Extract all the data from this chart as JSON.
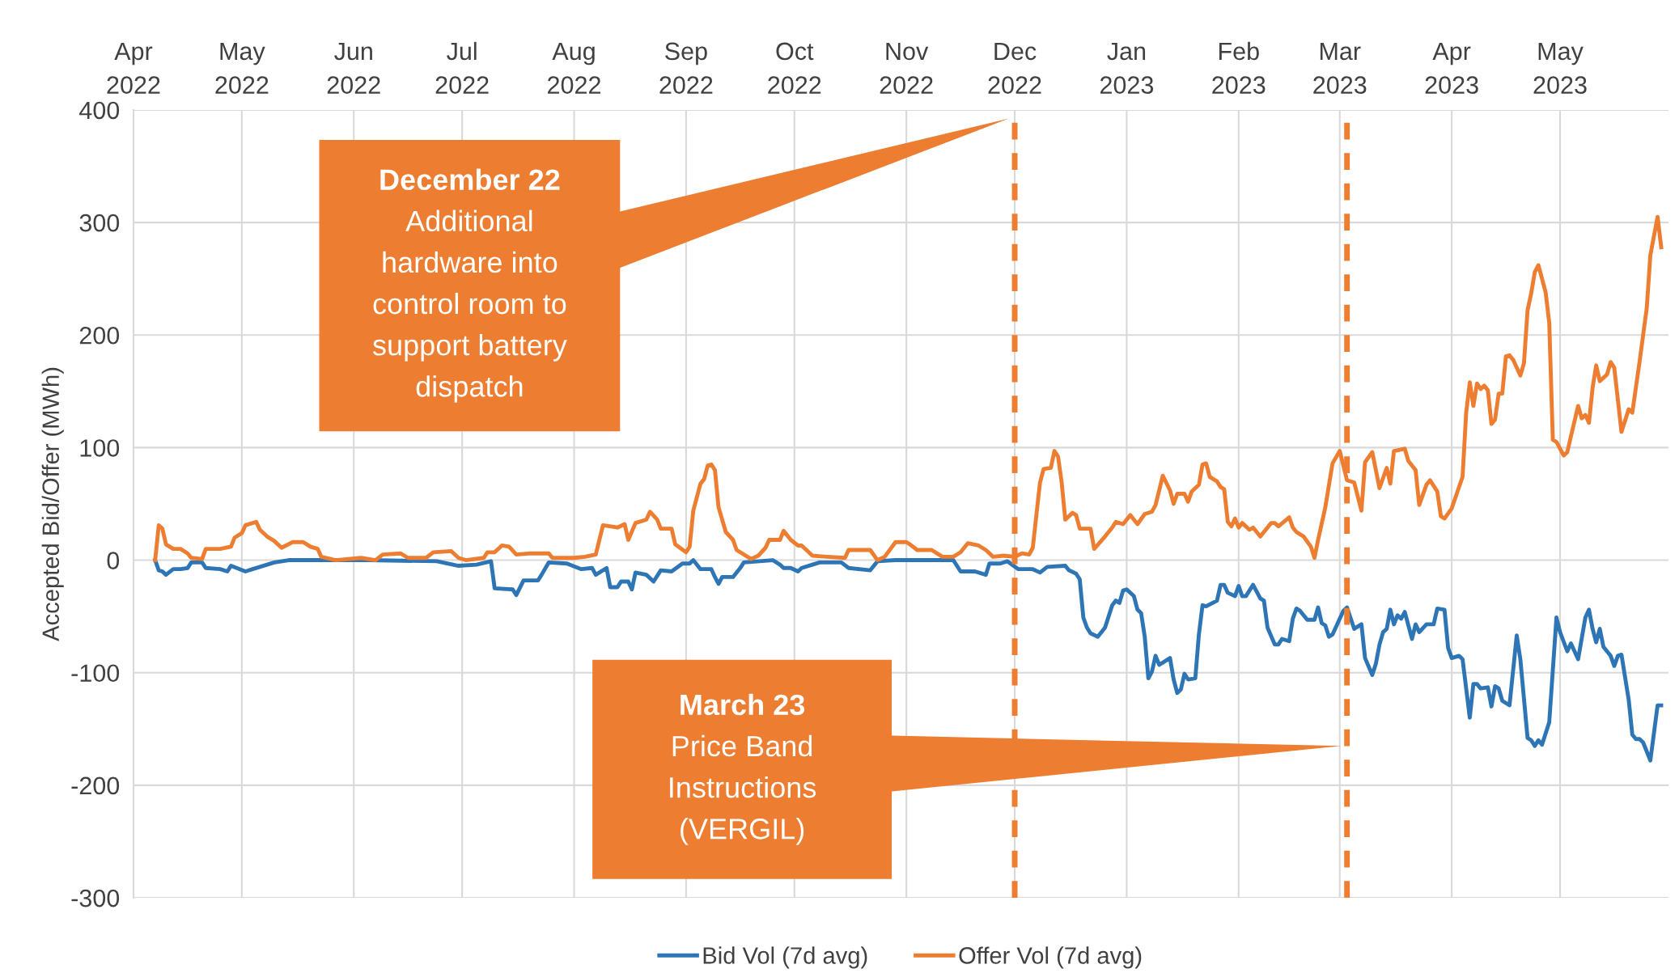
{
  "chart_data": {
    "type": "line",
    "ylabel": "Accepted Bid/Offer (MWh)",
    "xlim": [
      "2022-04-01",
      "2023-05-31"
    ],
    "xticks": [
      {
        "value": "2022-04-01",
        "label": "Apr\n2022"
      },
      {
        "value": "2022-05-01",
        "label": "May\n2022"
      },
      {
        "value": "2022-06-01",
        "label": "Jun\n2022"
      },
      {
        "value": "2022-07-01",
        "label": "Jul\n2022"
      },
      {
        "value": "2022-08-01",
        "label": "Aug\n2022"
      },
      {
        "value": "2022-09-01",
        "label": "Sep\n2022"
      },
      {
        "value": "2022-10-01",
        "label": "Oct\n2022"
      },
      {
        "value": "2022-11-01",
        "label": "Nov\n2022"
      },
      {
        "value": "2022-12-01",
        "label": "Dec\n2022"
      },
      {
        "value": "2023-01-01",
        "label": "Jan\n2023"
      },
      {
        "value": "2023-02-01",
        "label": "Feb\n2023"
      },
      {
        "value": "2023-03-01",
        "label": "Mar\n2023"
      },
      {
        "value": "2023-04-01",
        "label": "Apr\n2023"
      },
      {
        "value": "2023-05-01",
        "label": "May\n2023"
      }
    ],
    "ylim": [
      -300,
      400
    ],
    "yticks": [
      -300,
      -200,
      -100,
      0,
      100,
      200,
      300,
      400
    ],
    "grid": true,
    "legend": "bottom",
    "line_style": "solid",
    "marker": "none",
    "series": [
      {
        "name": "Bid Vol (7d avg)",
        "color": "#2e75b6",
        "x": [
          "2022-04-07",
          "2022-04-08",
          "2022-04-09",
          "2022-04-10",
          "2022-04-12",
          "2022-04-14",
          "2022-04-16",
          "2022-04-17",
          "2022-04-20",
          "2022-04-21",
          "2022-04-25",
          "2022-04-27",
          "2022-04-28",
          "2022-05-02",
          "2022-05-04",
          "2022-05-08",
          "2022-05-10",
          "2022-05-14",
          "2022-06-05",
          "2022-06-24",
          "2022-06-30",
          "2022-07-05",
          "2022-07-09",
          "2022-07-10",
          "2022-07-15",
          "2022-07-16",
          "2022-07-18",
          "2022-07-22",
          "2022-07-23",
          "2022-07-25",
          "2022-07-30",
          "2022-08-03",
          "2022-08-06",
          "2022-08-07",
          "2022-08-10",
          "2022-08-11",
          "2022-08-13",
          "2022-08-14",
          "2022-08-16",
          "2022-08-17",
          "2022-08-18",
          "2022-08-21",
          "2022-08-23",
          "2022-08-25",
          "2022-08-28",
          "2022-08-31",
          "2022-09-02",
          "2022-09-03",
          "2022-09-05",
          "2022-09-08",
          "2022-09-09",
          "2022-09-10",
          "2022-09-11",
          "2022-09-14",
          "2022-09-16",
          "2022-09-17",
          "2022-09-25",
          "2022-09-27",
          "2022-09-28",
          "2022-09-30",
          "2022-10-02",
          "2022-10-03",
          "2022-10-06",
          "2022-10-08",
          "2022-10-14",
          "2022-10-16",
          "2022-10-22",
          "2022-10-24",
          "2022-10-29",
          "2022-11-14",
          "2022-11-16",
          "2022-11-20",
          "2022-11-23",
          "2022-11-24",
          "2022-11-27",
          "2022-11-29",
          "2022-12-02",
          "2022-12-06",
          "2022-12-08",
          "2022-12-10",
          "2022-12-15",
          "2022-12-16",
          "2022-12-18",
          "2022-12-19",
          "2022-12-20",
          "2022-12-21",
          "2022-12-22",
          "2022-12-24",
          "2022-12-26",
          "2022-12-28",
          "2022-12-29",
          "2022-12-30",
          "2022-12-31",
          "2023-01-01",
          "2023-01-03",
          "2023-01-04",
          "2023-01-05",
          "2023-01-06",
          "2023-01-07",
          "2023-01-08",
          "2023-01-09",
          "2023-01-10",
          "2023-01-13",
          "2023-01-14",
          "2023-01-15",
          "2023-01-16",
          "2023-01-17",
          "2023-01-18",
          "2023-01-20",
          "2023-01-21",
          "2023-01-22",
          "2023-01-23",
          "2023-01-26",
          "2023-01-27",
          "2023-01-28",
          "2023-01-29",
          "2023-01-31",
          "2023-02-01",
          "2023-02-02",
          "2023-02-03",
          "2023-02-05",
          "2023-02-07",
          "2023-02-08",
          "2023-02-09",
          "2023-02-11",
          "2023-02-12",
          "2023-02-13",
          "2023-02-15",
          "2023-02-16",
          "2023-02-17",
          "2023-02-18",
          "2023-02-20",
          "2023-02-22",
          "2023-02-23",
          "2023-02-24",
          "2023-02-25",
          "2023-02-26",
          "2023-02-27",
          "2023-03-02",
          "2023-03-03",
          "2023-03-05",
          "2023-03-07",
          "2023-03-08",
          "2023-03-10",
          "2023-03-11",
          "2023-03-12",
          "2023-03-13",
          "2023-03-14",
          "2023-03-15",
          "2023-03-16",
          "2023-03-17",
          "2023-03-18",
          "2023-03-19",
          "2023-03-21",
          "2023-03-22",
          "2023-03-23",
          "2023-03-25",
          "2023-03-27",
          "2023-03-28",
          "2023-03-30",
          "2023-03-31",
          "2023-04-01",
          "2023-04-03",
          "2023-04-04",
          "2023-04-06",
          "2023-04-07",
          "2023-04-08",
          "2023-04-09",
          "2023-04-11",
          "2023-04-12",
          "2023-04-13",
          "2023-04-14",
          "2023-04-15",
          "2023-04-17",
          "2023-04-19",
          "2023-04-20",
          "2023-04-22",
          "2023-04-23",
          "2023-04-24",
          "2023-04-25",
          "2023-04-26",
          "2023-04-28",
          "2023-04-30",
          "2023-05-01",
          "2023-05-03",
          "2023-05-04",
          "2023-05-06",
          "2023-05-08",
          "2023-05-09",
          "2023-05-10",
          "2023-05-11",
          "2023-05-12",
          "2023-05-13",
          "2023-05-15",
          "2023-05-16",
          "2023-05-17",
          "2023-05-18",
          "2023-05-20",
          "2023-05-21",
          "2023-05-22",
          "2023-05-23",
          "2023-05-24",
          "2023-05-26",
          "2023-05-28",
          "2023-05-29"
        ],
        "values": [
          0,
          -9,
          -10,
          -13,
          -8,
          -8,
          -7,
          -2,
          -2,
          -7,
          -8,
          -10,
          -5,
          -10,
          -8,
          -4,
          -2,
          0,
          0,
          -1,
          -5,
          -4,
          -1,
          -25,
          -26,
          -31,
          -18,
          -18,
          -13,
          -2,
          -3,
          -8,
          -7,
          -13,
          -7,
          -24,
          -24,
          -19,
          -19,
          -26,
          -11,
          -13,
          -19,
          -9,
          -10,
          -3,
          -3,
          0,
          -8,
          -8,
          -15,
          -21,
          -15,
          -15,
          -7,
          -2,
          0,
          -4,
          -7,
          -7,
          -10,
          -7,
          -4,
          -2,
          -2,
          -7,
          -9,
          -1,
          0,
          0,
          -10,
          -10,
          -13,
          -3,
          -3,
          -1,
          -8,
          -8,
          -11,
          -6,
          -5,
          -9,
          -12,
          -17,
          -51,
          -60,
          -65,
          -68,
          -60,
          -40,
          -36,
          -38,
          -27,
          -26,
          -32,
          -44,
          -47,
          -68,
          -105,
          -99,
          -85,
          -93,
          -87,
          -106,
          -118,
          -115,
          -101,
          -106,
          -105,
          -66,
          -40,
          -41,
          -36,
          -22,
          -22,
          -29,
          -32,
          -23,
          -32,
          -32,
          -22,
          -34,
          -36,
          -60,
          -75,
          -75,
          -70,
          -72,
          -52,
          -43,
          -45,
          -53,
          -53,
          -42,
          -56,
          -58,
          -68,
          -66,
          -45,
          -42,
          -61,
          -57,
          -87,
          -102,
          -92,
          -75,
          -64,
          -61,
          -44,
          -57,
          -49,
          -52,
          -46,
          -70,
          -57,
          -64,
          -57,
          -57,
          -43,
          -44,
          -78,
          -87,
          -85,
          -88,
          -140,
          -110,
          -110,
          -114,
          -113,
          -130,
          -112,
          -114,
          -125,
          -129,
          -67,
          -88,
          -158,
          -160,
          -165,
          -160,
          -164,
          -144,
          -51,
          -64,
          -81,
          -74,
          -88,
          -51,
          -44,
          -61,
          -73,
          -61,
          -77,
          -85,
          -94,
          -85,
          -84,
          -124,
          -155,
          -159,
          -159,
          -162,
          -178,
          -129,
          -129
        ]
      },
      {
        "name": "Offer Vol (7d avg)",
        "color": "#ed7d31",
        "x": [
          "2022-04-07",
          "2022-04-08",
          "2022-04-09",
          "2022-04-10",
          "2022-04-12",
          "2022-04-14",
          "2022-04-16",
          "2022-04-17",
          "2022-04-20",
          "2022-04-21",
          "2022-04-25",
          "2022-04-28",
          "2022-04-29",
          "2022-05-01",
          "2022-05-02",
          "2022-05-05",
          "2022-05-06",
          "2022-05-08",
          "2022-05-10",
          "2022-05-12",
          "2022-05-15",
          "2022-05-18",
          "2022-05-20",
          "2022-05-22",
          "2022-05-23",
          "2022-05-27",
          "2022-06-03",
          "2022-06-07",
          "2022-06-09",
          "2022-06-14",
          "2022-06-16",
          "2022-06-21",
          "2022-06-23",
          "2022-06-28",
          "2022-06-30",
          "2022-07-02",
          "2022-07-07",
          "2022-07-08",
          "2022-07-10",
          "2022-07-12",
          "2022-07-14",
          "2022-07-16",
          "2022-07-20",
          "2022-07-25",
          "2022-07-26",
          "2022-08-01",
          "2022-08-04",
          "2022-08-07",
          "2022-08-09",
          "2022-08-13",
          "2022-08-15",
          "2022-08-16",
          "2022-08-18",
          "2022-08-21",
          "2022-08-22",
          "2022-08-24",
          "2022-08-25",
          "2022-08-28",
          "2022-08-29",
          "2022-09-01",
          "2022-09-02",
          "2022-09-03",
          "2022-09-05",
          "2022-09-06",
          "2022-09-07",
          "2022-09-08",
          "2022-09-09",
          "2022-09-10",
          "2022-09-12",
          "2022-09-14",
          "2022-09-15",
          "2022-09-19",
          "2022-09-21",
          "2022-09-23",
          "2022-09-24",
          "2022-09-27",
          "2022-09-28",
          "2022-09-30",
          "2022-10-02",
          "2022-10-03",
          "2022-10-06",
          "2022-10-10",
          "2022-10-15",
          "2022-10-16",
          "2022-10-22",
          "2022-10-24",
          "2022-10-26",
          "2022-10-29",
          "2022-11-01",
          "2022-11-02",
          "2022-11-04",
          "2022-11-08",
          "2022-11-11",
          "2022-11-14",
          "2022-11-16",
          "2022-11-18",
          "2022-11-21",
          "2022-11-23",
          "2022-11-25",
          "2022-11-28",
          "2022-12-01",
          "2022-12-03",
          "2022-12-05",
          "2022-12-06",
          "2022-12-08",
          "2022-12-09",
          "2022-12-11",
          "2022-12-12",
          "2022-12-13",
          "2022-12-14",
          "2022-12-15",
          "2022-12-17",
          "2022-12-18",
          "2022-12-19",
          "2022-12-22",
          "2022-12-23",
          "2022-12-26",
          "2022-12-28",
          "2022-12-29",
          "2022-12-31",
          "2023-01-02",
          "2023-01-03",
          "2023-01-04",
          "2023-01-06",
          "2023-01-08",
          "2023-01-09",
          "2023-01-11",
          "2023-01-13",
          "2023-01-14",
          "2023-01-15",
          "2023-01-17",
          "2023-01-18",
          "2023-01-19",
          "2023-01-21",
          "2023-01-22",
          "2023-01-23",
          "2023-01-24",
          "2023-01-26",
          "2023-01-27",
          "2023-01-28",
          "2023-01-29",
          "2023-01-30",
          "2023-01-31",
          "2023-02-01",
          "2023-02-02",
          "2023-02-04",
          "2023-02-05",
          "2023-02-07",
          "2023-02-10",
          "2023-02-11",
          "2023-02-12",
          "2023-02-15",
          "2023-02-16",
          "2023-02-17",
          "2023-02-19",
          "2023-02-21",
          "2023-02-22",
          "2023-02-23",
          "2023-02-25",
          "2023-02-27",
          "2023-03-01",
          "2023-03-03",
          "2023-03-05",
          "2023-03-07",
          "2023-03-08",
          "2023-03-10",
          "2023-03-12",
          "2023-03-14",
          "2023-03-15",
          "2023-03-16",
          "2023-03-19",
          "2023-03-20",
          "2023-03-22",
          "2023-03-23",
          "2023-03-25",
          "2023-03-26",
          "2023-03-28",
          "2023-03-29",
          "2023-03-30",
          "2023-04-01",
          "2023-04-04",
          "2023-04-05",
          "2023-04-06",
          "2023-04-07",
          "2023-04-08",
          "2023-04-09",
          "2023-04-10",
          "2023-04-11",
          "2023-04-12",
          "2023-04-13",
          "2023-04-14",
          "2023-04-15",
          "2023-04-16",
          "2023-04-17",
          "2023-04-18",
          "2023-04-20",
          "2023-04-21",
          "2023-04-22",
          "2023-04-23",
          "2023-04-24",
          "2023-04-25",
          "2023-04-27",
          "2023-04-28",
          "2023-04-29",
          "2023-04-30",
          "2023-05-02",
          "2023-05-03",
          "2023-05-04",
          "2023-05-06",
          "2023-05-07",
          "2023-05-08",
          "2023-05-09",
          "2023-05-10",
          "2023-05-11",
          "2023-05-12",
          "2023-05-14",
          "2023-05-15",
          "2023-05-16",
          "2023-05-18",
          "2023-05-20",
          "2023-05-21",
          "2023-05-23",
          "2023-05-25",
          "2023-05-26",
          "2023-05-28",
          "2023-05-29"
        ],
        "values": [
          0,
          31,
          28,
          14,
          10,
          10,
          6,
          2,
          1,
          10,
          10,
          12,
          20,
          24,
          31,
          34,
          27,
          21,
          17,
          11,
          16,
          16,
          12,
          10,
          3,
          0,
          2,
          0,
          5,
          6,
          2,
          2,
          7,
          8,
          2,
          0,
          2,
          7,
          7,
          13,
          12,
          5,
          6,
          6,
          2,
          2,
          3,
          5,
          31,
          29,
          32,
          18,
          33,
          36,
          43,
          36,
          28,
          28,
          14,
          7,
          12,
          44,
          68,
          72,
          84,
          85,
          80,
          47,
          25,
          18,
          9,
          1,
          4,
          11,
          18,
          18,
          26,
          18,
          13,
          13,
          4,
          3,
          2,
          9,
          9,
          0,
          3,
          16,
          16,
          14,
          9,
          9,
          3,
          3,
          7,
          15,
          13,
          9,
          3,
          4,
          3,
          6,
          5,
          11,
          69,
          81,
          82,
          97,
          92,
          69,
          36,
          42,
          40,
          28,
          28,
          10,
          21,
          29,
          34,
          32,
          40,
          36,
          32,
          41,
          43,
          49,
          75,
          62,
          50,
          59,
          59,
          52,
          61,
          67,
          85,
          86,
          74,
          70,
          65,
          63,
          34,
          30,
          37,
          29,
          33,
          27,
          29,
          21,
          33,
          33,
          30,
          38,
          29,
          25,
          21,
          12,
          2,
          18,
          47,
          86,
          97,
          71,
          69,
          44,
          87,
          96,
          64,
          82,
          68,
          97,
          99,
          88,
          80,
          49,
          67,
          71,
          61,
          39,
          37,
          46,
          74,
          131,
          158,
          137,
          157,
          152,
          155,
          151,
          121,
          125,
          148,
          148,
          181,
          182,
          178,
          164,
          175,
          222,
          237,
          256,
          262,
          238,
          211,
          107,
          105,
          93,
          96,
          110,
          137,
          126,
          129,
          122,
          153,
          173,
          159,
          165,
          176,
          171,
          114,
          134,
          131,
          176,
          224,
          271,
          305,
          278
        ]
      }
    ],
    "ref_lines": [
      {
        "axis": "x",
        "value": "2022-12-01",
        "color": "#ed7d31",
        "line_style": "dashed"
      },
      {
        "axis": "x",
        "value": "2023-03-03",
        "color": "#ed7d31",
        "line_style": "dashed"
      }
    ],
    "annotations": [
      {
        "text": "December 22\nAdditional\nhardware into\ncontrol room to\nsupport battery\ndispatch",
        "x": "2022-11-30",
        "y": 393
      },
      {
        "text": "March 23\nPrice Band\nInstructions\n(VERGIL)",
        "x": "2023-03-02",
        "y": -165
      }
    ]
  }
}
